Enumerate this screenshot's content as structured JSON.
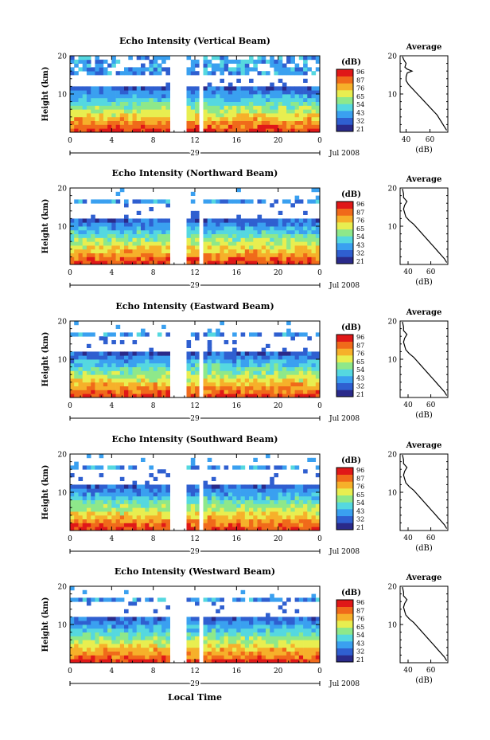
{
  "figure": {
    "bottom_label": "Local Time"
  },
  "chart_data": [
    {
      "type": "heatmap",
      "title": "Echo Intensity (Vertical Beam)",
      "ylabel": "Height (km)",
      "ylim": [
        0,
        20
      ],
      "y_ticks": [
        "10",
        "20"
      ],
      "xlim": [
        0,
        24
      ],
      "x_ticks": [
        "0",
        "4",
        "8",
        "12",
        "16",
        "20",
        "0"
      ],
      "date_day": "29",
      "date_label": "Jul 2008",
      "gaps_hours": [
        [
          9.6,
          10.6
        ],
        [
          10.9,
          11.0
        ],
        [
          12.6,
          12.9
        ]
      ],
      "top_clear_band_km": [
        12.0,
        14.0
      ],
      "colorbar": {
        "label": "(dB)",
        "ticks": [
          "96",
          "87",
          "76",
          "65",
          "54",
          "43",
          "32",
          "21"
        ],
        "colors": [
          "#2a2a8a",
          "#2f5fd0",
          "#3aa0f0",
          "#55d8e0",
          "#8ee88a",
          "#e8ee50",
          "#f6b02a",
          "#f06a1a",
          "#e01818"
        ]
      },
      "average": {
        "title": "Average",
        "xlabel": "(dB)",
        "x_ticks": [
          "40",
          "60"
        ],
        "xlim": [
          35,
          75
        ],
        "ylim": [
          0,
          20
        ],
        "y_ticks": [
          "10",
          "20"
        ],
        "profile": [
          [
            74,
            0.5
          ],
          [
            72,
            1.5
          ],
          [
            70,
            2.5
          ],
          [
            68,
            3.5
          ],
          [
            66,
            4.5
          ],
          [
            63,
            5.5
          ],
          [
            60,
            6.5
          ],
          [
            57,
            7.5
          ],
          [
            54,
            8.5
          ],
          [
            51,
            9.5
          ],
          [
            48,
            10.5
          ],
          [
            45,
            11.5
          ],
          [
            42,
            12.5
          ],
          [
            40,
            13.5
          ],
          [
            40,
            14.5
          ],
          [
            41,
            15.5
          ],
          [
            45,
            16.0
          ],
          [
            41,
            16.5
          ],
          [
            39,
            17.0
          ],
          [
            40,
            18.0
          ],
          [
            38,
            19.0
          ],
          [
            37,
            19.8
          ]
        ]
      }
    },
    {
      "type": "heatmap",
      "title": "Echo Intensity (Northward Beam)",
      "ylabel": "Height (km)",
      "ylim": [
        0,
        20
      ],
      "y_ticks": [
        "10",
        "20"
      ],
      "xlim": [
        0,
        24
      ],
      "x_ticks": [
        "0",
        "4",
        "8",
        "12",
        "16",
        "20",
        "0"
      ],
      "date_day": "29",
      "date_label": "Jul 2008",
      "gaps_hours": [
        [
          9.6,
          10.6
        ],
        [
          10.9,
          11.0
        ],
        [
          12.6,
          12.9
        ]
      ],
      "top_clear_band_km": [
        12.0,
        15.5
      ],
      "colorbar": {
        "label": "(dB)",
        "ticks": [
          "96",
          "87",
          "76",
          "65",
          "54",
          "43",
          "32",
          "21"
        ],
        "colors": [
          "#2a2a8a",
          "#2f5fd0",
          "#3aa0f0",
          "#55d8e0",
          "#8ee88a",
          "#e8ee50",
          "#f6b02a",
          "#f06a1a",
          "#e01818"
        ]
      },
      "average": {
        "title": "Average",
        "xlabel": "(dB)",
        "x_ticks": [
          "40",
          "60"
        ],
        "xlim": [
          33,
          75
        ],
        "ylim": [
          0,
          20
        ],
        "y_ticks": [
          "10",
          "20"
        ],
        "profile": [
          [
            74,
            0.5
          ],
          [
            72,
            1.5
          ],
          [
            69,
            2.5
          ],
          [
            66,
            3.5
          ],
          [
            63,
            4.5
          ],
          [
            60,
            5.5
          ],
          [
            57,
            6.5
          ],
          [
            54,
            7.5
          ],
          [
            51,
            8.5
          ],
          [
            48,
            9.5
          ],
          [
            45,
            10.5
          ],
          [
            41,
            11.5
          ],
          [
            38,
            12.5
          ],
          [
            37,
            13.5
          ],
          [
            36,
            14.5
          ],
          [
            37,
            15.5
          ],
          [
            39,
            16.5
          ],
          [
            36,
            17.5
          ],
          [
            36,
            18.5
          ],
          [
            35,
            19.8
          ]
        ]
      }
    },
    {
      "type": "heatmap",
      "title": "Echo Intensity (Eastward Beam)",
      "ylabel": "Height (km)",
      "ylim": [
        0,
        20
      ],
      "y_ticks": [
        "10",
        "20"
      ],
      "xlim": [
        0,
        24
      ],
      "x_ticks": [
        "0",
        "4",
        "8",
        "12",
        "16",
        "20",
        "0"
      ],
      "date_day": "29",
      "date_label": "Jul 2008",
      "gaps_hours": [
        [
          9.6,
          10.6
        ],
        [
          10.9,
          11.0
        ],
        [
          12.6,
          12.9
        ]
      ],
      "top_clear_band_km": [
        12.0,
        15.5
      ],
      "colorbar": {
        "label": "(dB)",
        "ticks": [
          "96",
          "87",
          "76",
          "65",
          "54",
          "43",
          "32",
          "21"
        ],
        "colors": [
          "#2a2a8a",
          "#2f5fd0",
          "#3aa0f0",
          "#55d8e0",
          "#8ee88a",
          "#e8ee50",
          "#f6b02a",
          "#f06a1a",
          "#e01818"
        ]
      },
      "average": {
        "title": "Average",
        "xlabel": "(dB)",
        "x_ticks": [
          "40",
          "60"
        ],
        "xlim": [
          33,
          75
        ],
        "ylim": [
          0,
          20
        ],
        "y_ticks": [
          "10",
          "20"
        ],
        "profile": [
          [
            74,
            0.5
          ],
          [
            72,
            1.5
          ],
          [
            69,
            2.5
          ],
          [
            66,
            3.5
          ],
          [
            63,
            4.5
          ],
          [
            60,
            5.5
          ],
          [
            57,
            6.5
          ],
          [
            54,
            7.5
          ],
          [
            51,
            8.5
          ],
          [
            48,
            9.5
          ],
          [
            45,
            10.5
          ],
          [
            41,
            11.5
          ],
          [
            38,
            12.5
          ],
          [
            37,
            13.5
          ],
          [
            36,
            14.5
          ],
          [
            37,
            15.5
          ],
          [
            39,
            16.5
          ],
          [
            36,
            17.5
          ],
          [
            36,
            18.5
          ],
          [
            35,
            19.8
          ]
        ]
      }
    },
    {
      "type": "heatmap",
      "title": "Echo Intensity (Southward Beam)",
      "ylabel": "Height (km)",
      "ylim": [
        0,
        20
      ],
      "y_ticks": [
        "10",
        "20"
      ],
      "xlim": [
        0,
        24
      ],
      "x_ticks": [
        "0",
        "4",
        "8",
        "12",
        "16",
        "20",
        "0"
      ],
      "date_day": "29",
      "date_label": "Jul 2008",
      "gaps_hours": [
        [
          9.6,
          10.6
        ],
        [
          10.9,
          11.0
        ],
        [
          12.6,
          12.9
        ]
      ],
      "top_clear_band_km": [
        12.0,
        15.5
      ],
      "colorbar": {
        "label": "(dB)",
        "ticks": [
          "96",
          "87",
          "76",
          "65",
          "54",
          "43",
          "32",
          "21"
        ],
        "colors": [
          "#2a2a8a",
          "#2f5fd0",
          "#3aa0f0",
          "#55d8e0",
          "#8ee88a",
          "#e8ee50",
          "#f6b02a",
          "#f06a1a",
          "#e01818"
        ]
      },
      "average": {
        "title": "Average",
        "xlabel": "(dB)",
        "x_ticks": [
          "40",
          "60"
        ],
        "xlim": [
          33,
          75
        ],
        "ylim": [
          0,
          20
        ],
        "y_ticks": [
          "10",
          "20"
        ],
        "profile": [
          [
            74,
            0.5
          ],
          [
            72,
            1.5
          ],
          [
            69,
            2.5
          ],
          [
            66,
            3.5
          ],
          [
            63,
            4.5
          ],
          [
            60,
            5.5
          ],
          [
            57,
            6.5
          ],
          [
            54,
            7.5
          ],
          [
            51,
            8.5
          ],
          [
            48,
            9.5
          ],
          [
            45,
            10.5
          ],
          [
            41,
            11.5
          ],
          [
            38,
            12.5
          ],
          [
            37,
            13.5
          ],
          [
            36,
            14.5
          ],
          [
            37,
            15.5
          ],
          [
            39,
            16.5
          ],
          [
            36,
            17.5
          ],
          [
            36,
            18.5
          ],
          [
            35,
            19.8
          ]
        ]
      }
    },
    {
      "type": "heatmap",
      "title": "Echo Intensity (Westward Beam)",
      "ylabel": "Height (km)",
      "ylim": [
        0,
        20
      ],
      "y_ticks": [
        "10",
        "20"
      ],
      "xlim": [
        0,
        24
      ],
      "x_ticks": [
        "0",
        "4",
        "8",
        "12",
        "16",
        "20",
        "0"
      ],
      "date_day": "29",
      "date_label": "Jul 2008",
      "gaps_hours": [
        [
          9.6,
          10.6
        ],
        [
          10.9,
          11.0
        ],
        [
          12.6,
          12.9
        ]
      ],
      "top_clear_band_km": [
        12.0,
        15.5
      ],
      "colorbar": {
        "label": "(dB)",
        "ticks": [
          "96",
          "87",
          "76",
          "65",
          "54",
          "43",
          "32",
          "21"
        ],
        "colors": [
          "#2a2a8a",
          "#2f5fd0",
          "#3aa0f0",
          "#55d8e0",
          "#8ee88a",
          "#e8ee50",
          "#f6b02a",
          "#f06a1a",
          "#e01818"
        ]
      },
      "average": {
        "title": "Average",
        "xlabel": "(dB)",
        "x_ticks": [
          "40",
          "60"
        ],
        "xlim": [
          33,
          75
        ],
        "ylim": [
          0,
          20
        ],
        "y_ticks": [
          "10",
          "20"
        ],
        "profile": [
          [
            74,
            0.5
          ],
          [
            72,
            1.5
          ],
          [
            69,
            2.5
          ],
          [
            66,
            3.5
          ],
          [
            63,
            4.5
          ],
          [
            60,
            5.5
          ],
          [
            57,
            6.5
          ],
          [
            54,
            7.5
          ],
          [
            51,
            8.5
          ],
          [
            48,
            9.5
          ],
          [
            45,
            10.5
          ],
          [
            41,
            11.5
          ],
          [
            38,
            12.5
          ],
          [
            37,
            13.5
          ],
          [
            36,
            14.5
          ],
          [
            37,
            15.5
          ],
          [
            39,
            16.5
          ],
          [
            36,
            17.5
          ],
          [
            36,
            18.5
          ],
          [
            35,
            19.8
          ]
        ]
      }
    }
  ]
}
